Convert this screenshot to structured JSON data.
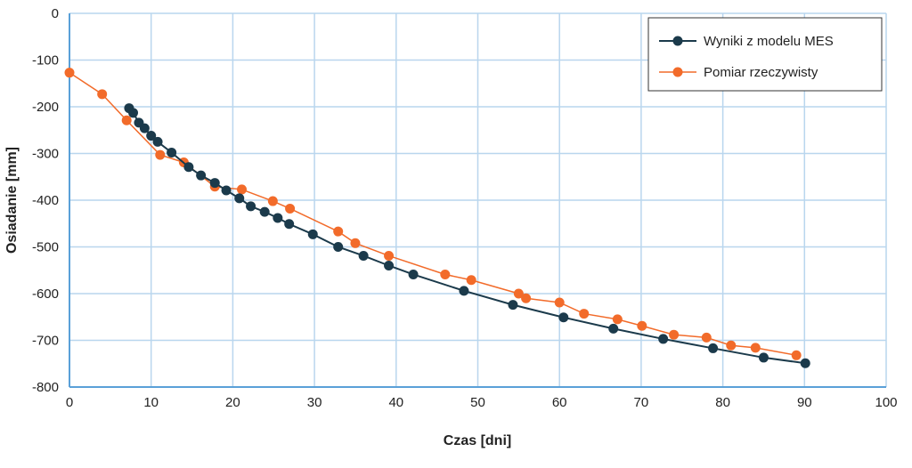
{
  "chart_data": {
    "type": "line",
    "title": "",
    "xlabel": "Czas [dni]",
    "ylabel": "Osiadanie [mm]",
    "xlim": [
      0,
      100
    ],
    "ylim": [
      -800,
      0
    ],
    "xticks": [
      0,
      10,
      20,
      30,
      40,
      50,
      60,
      70,
      80,
      90,
      100
    ],
    "yticks": [
      0,
      -100,
      -200,
      -300,
      -400,
      -500,
      -600,
      -700,
      -800
    ],
    "grid": true,
    "legend_position": "top-right",
    "series": [
      {
        "name": "Wyniki z modelu MES",
        "color": "#1b3a4b",
        "x": [
          7.3,
          7.8,
          8.5,
          9.2,
          10.0,
          10.8,
          12.5,
          14.6,
          16.1,
          17.8,
          19.2,
          20.8,
          22.2,
          23.9,
          25.5,
          26.9,
          29.8,
          32.9,
          36.0,
          39.1,
          42.1,
          48.3,
          54.3,
          60.5,
          66.6,
          72.7,
          78.8,
          85.0,
          90.1
        ],
        "y": [
          -203,
          -213,
          -234,
          -246,
          -262,
          -275,
          -298,
          -329,
          -347,
          -363,
          -379,
          -396,
          -413,
          -425,
          -438,
          -451,
          -473,
          -500,
          -519,
          -540,
          -559,
          -594,
          -624,
          -651,
          -675,
          -697,
          -717,
          -737,
          -749
        ]
      },
      {
        "name": "Pomiar rzeczywisty",
        "color": "#f26b2a",
        "x": [
          0,
          4.0,
          7.0,
          11.1,
          14.0,
          17.8,
          21.1,
          24.9,
          27.0,
          32.9,
          35.0,
          39.1,
          46.0,
          49.2,
          55.0,
          55.9,
          60.0,
          63.0,
          67.1,
          70.1,
          74.0,
          78.0,
          81.0,
          84.0,
          89.0
        ],
        "y": [
          -127,
          -173,
          -229,
          -303,
          -319,
          -371,
          -377,
          -402,
          -418,
          -467,
          -492,
          -519,
          -559,
          -571,
          -600,
          -610,
          -619,
          -643,
          -655,
          -669,
          -688,
          -694,
          -711,
          -716,
          -732
        ]
      }
    ]
  }
}
